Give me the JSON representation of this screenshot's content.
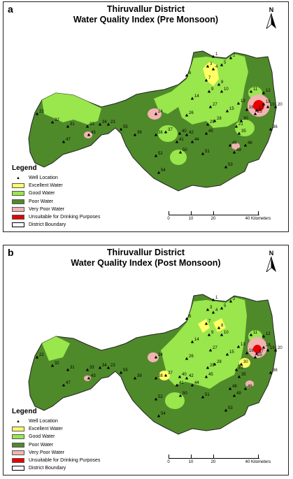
{
  "panels": [
    {
      "label": "a",
      "title_line1": "Thiruvallur District",
      "title_line2": "Water Quality Index (Pre Monsoon)"
    },
    {
      "label": "b",
      "title_line1": "Thiruvallur District",
      "title_line2": "Water Quality Index (Post Monsoon)"
    }
  ],
  "north_label": "N",
  "legend": {
    "title": "Legend",
    "items": [
      {
        "label": "Well Location",
        "symbol": "triangle"
      },
      {
        "label": "Excellent Water",
        "color": "#ffff66"
      },
      {
        "label": "Good Water",
        "color": "#99e64d"
      },
      {
        "label": "Poor Water",
        "color": "#4f8a2a"
      },
      {
        "label": "Very Poor Water",
        "color": "#f2b3b3"
      },
      {
        "label": "Unsuitable for Drinking Purposes",
        "color": "#e60000"
      },
      {
        "label": "District Boundary",
        "color": "#ffffff"
      }
    ]
  },
  "scale": {
    "ticks": [
      "0",
      "10",
      "20",
      "40 Kilometers"
    ]
  },
  "well_labels": [
    "1",
    "2",
    "3",
    "4",
    "5",
    "6",
    "7",
    "8",
    "9",
    "10",
    "11",
    "12",
    "13",
    "14",
    "15",
    "16",
    "17",
    "18",
    "19",
    "20",
    "21",
    "22",
    "23",
    "24",
    "25",
    "26",
    "27",
    "28",
    "29",
    "30",
    "31",
    "32",
    "33",
    "34",
    "35",
    "36",
    "37",
    "38",
    "39",
    "40",
    "41",
    "42",
    "43",
    "44",
    "45",
    "46",
    "47",
    "48",
    "49",
    "50",
    "51",
    "52",
    "53",
    "54",
    "55"
  ]
}
